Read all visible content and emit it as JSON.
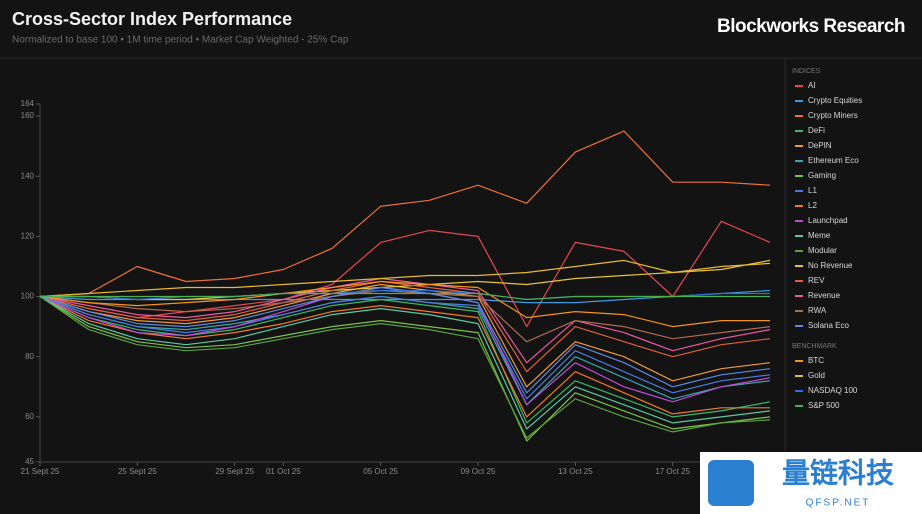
{
  "chart_data": {
    "type": "line",
    "title": "Cross-Sector Index Performance",
    "subtitle": "Normalized to base 100 • 1M time period • Market Cap Weighted - 25% Cap",
    "brand": "Blockworks Research",
    "watermark": {
      "title": "量链科技",
      "subtitle": "QFSP.NET"
    },
    "x": [
      "2025-09-21",
      "2025-09-23",
      "2025-09-25",
      "2025-09-27",
      "2025-09-29",
      "2025-10-01",
      "2025-10-03",
      "2025-10-05",
      "2025-10-07",
      "2025-10-09",
      "2025-10-11",
      "2025-10-13",
      "2025-10-15",
      "2025-10-17",
      "2025-10-19",
      "2025-10-21"
    ],
    "xlim": [
      "2025-09-21",
      "2025-10-21"
    ],
    "xticks": [
      {
        "value": "2025-09-21",
        "label": "21 Sept 25"
      },
      {
        "value": "2025-09-25",
        "label": "25 Sept 25"
      },
      {
        "value": "2025-09-29",
        "label": "29 Sept 25"
      },
      {
        "value": "2025-10-01",
        "label": "01 Oct 25"
      },
      {
        "value": "2025-10-05",
        "label": "05 Oct 25"
      },
      {
        "value": "2025-10-09",
        "label": "09 Oct 25"
      },
      {
        "value": "2025-10-13",
        "label": "13 Oct 25"
      },
      {
        "value": "2025-10-17",
        "label": "17 Oct 25"
      }
    ],
    "ylim": [
      45,
      164
    ],
    "yticks": [
      45,
      60,
      80,
      100,
      120,
      140,
      160,
      164
    ],
    "series_groups": [
      {
        "title": "INDICES",
        "series": [
          {
            "name": "AI",
            "color": "#e5484d",
            "values": [
              100,
              96,
              93,
              95,
              97,
              99,
              104,
              118,
              122,
              120,
              90,
              118,
              115,
              100,
              125,
              118
            ]
          },
          {
            "name": "Crypto Equities",
            "color": "#3e9be0",
            "values": [
              100,
              99,
              99,
              99,
              99,
              99,
              99,
              99,
              99,
              99,
              98,
              98,
              99,
              100,
              101,
              102
            ]
          },
          {
            "name": "Crypto Miners",
            "color": "#ef6f3a",
            "values": [
              100,
              101,
              110,
              105,
              106,
              109,
              116,
              130,
              132,
              137,
              131,
              148,
              155,
              138,
              138,
              137
            ]
          },
          {
            "name": "DeFi",
            "color": "#3ab86a",
            "values": [
              100,
              93,
              89,
              87,
              89,
              93,
              97,
              99,
              97,
              95,
              58,
              72,
              66,
              60,
              62,
              65
            ]
          },
          {
            "name": "DePIN",
            "color": "#f29a3c",
            "values": [
              100,
              95,
              92,
              91,
              93,
              97,
              101,
              104,
              102,
              100,
              70,
              85,
              80,
              72,
              76,
              78
            ]
          },
          {
            "name": "Ethereum Eco",
            "color": "#3aa6a6",
            "values": [
              100,
              94,
              90,
              89,
              91,
              94,
              98,
              100,
              98,
              96,
              64,
              80,
              73,
              66,
              70,
              72
            ]
          },
          {
            "name": "Gaming",
            "color": "#7cc24a",
            "values": [
              100,
              90,
              85,
              83,
              84,
              87,
              90,
              92,
              90,
              88,
              52,
              68,
              62,
              56,
              58,
              60
            ]
          },
          {
            "name": "L1",
            "color": "#4c7be0",
            "values": [
              100,
              94,
              90,
              88,
              90,
              94,
              98,
              100,
              98,
              97,
              66,
              82,
              75,
              68,
              72,
              74
            ]
          },
          {
            "name": "L2",
            "color": "#f07a2a",
            "values": [
              100,
              92,
              88,
              86,
              88,
              91,
              95,
              97,
              95,
              93,
              60,
              75,
              68,
              61,
              63,
              63
            ]
          },
          {
            "name": "Launchpad",
            "color": "#c04ad8",
            "values": [
              100,
              93,
              88,
              87,
              90,
              95,
              100,
              103,
              101,
              98,
              64,
              78,
              70,
              65,
              70,
              73
            ]
          },
          {
            "name": "Meme",
            "color": "#5ec8a0",
            "values": [
              100,
              91,
              86,
              84,
              86,
              90,
              94,
              96,
              94,
              91,
              56,
              70,
              64,
              58,
              60,
              62
            ]
          },
          {
            "name": "Modular",
            "color": "#5aa040",
            "values": [
              100,
              89,
              84,
              82,
              83,
              86,
              89,
              91,
              89,
              86,
              53,
              66,
              60,
              55,
              58,
              59
            ]
          },
          {
            "name": "No Revenue",
            "color": "#e8c33a",
            "values": [
              100,
              100,
              99,
              99,
              100,
              101,
              102,
              103,
              104,
              105,
              104,
              106,
              107,
              108,
              109,
              112
            ]
          },
          {
            "name": "REV",
            "color": "#e0603a",
            "values": [
              100,
              96,
              93,
              92,
              94,
              98,
              102,
              105,
              103,
              101,
              75,
              90,
              85,
              80,
              84,
              86
            ]
          },
          {
            "name": "Revenue",
            "color": "#e85aa0",
            "values": [
              100,
              97,
              94,
              93,
              95,
              99,
              103,
              106,
              104,
              102,
              78,
              92,
              88,
              82,
              86,
              89
            ]
          },
          {
            "name": "RWA",
            "color": "#b06a50",
            "values": [
              100,
              98,
              96,
              95,
              96,
              98,
              100,
              102,
              101,
              100,
              85,
              92,
              90,
              86,
              88,
              90
            ]
          },
          {
            "name": "Solana Eco",
            "color": "#5a8ae0",
            "values": [
              100,
              95,
              91,
              90,
              92,
              96,
              100,
              103,
              101,
              98,
              68,
              84,
              78,
              70,
              74,
              76
            ]
          }
        ]
      },
      {
        "title": "BENCHMARK",
        "series": [
          {
            "name": "BTC",
            "color": "#f7931a",
            "values": [
              100,
              98,
              97,
              98,
              99,
              101,
              103,
              105,
              104,
              103,
              93,
              95,
              94,
              90,
              92,
              92
            ]
          },
          {
            "name": "Gold",
            "color": "#e8b830",
            "values": [
              100,
              101,
              102,
              103,
              103,
              104,
              105,
              106,
              107,
              107,
              108,
              110,
              112,
              108,
              110,
              111
            ]
          },
          {
            "name": "NASDAQ 100",
            "color": "#2f6fe0",
            "values": [
              100,
              100,
              99,
              100,
              100,
              101,
              101,
              102,
              102,
              101,
              99,
              100,
              100,
              100,
              101,
              101
            ]
          },
          {
            "name": "S&P 500",
            "color": "#4caf50",
            "values": [
              100,
              100,
              100,
              100,
              100,
              101,
              101,
              101,
              101,
              101,
              99,
              100,
              100,
              100,
              100,
              100
            ]
          }
        ]
      }
    ]
  }
}
